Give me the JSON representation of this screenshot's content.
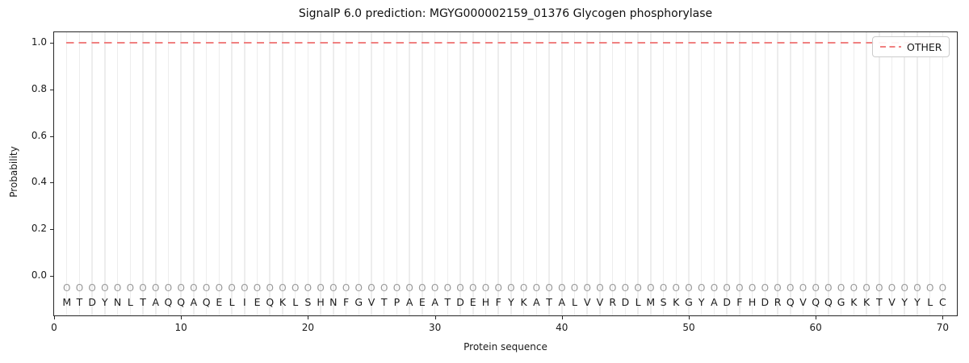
{
  "title": "SignalP 6.0 prediction: MGYG000002159_01376 Glycogen phosphorylase",
  "legend": {
    "label": "OTHER",
    "position": "upper right"
  },
  "axes": {
    "xlabel": "Protein sequence",
    "ylabel": "Probability",
    "xtick_labels": [
      "0",
      "10",
      "20",
      "30",
      "40",
      "50",
      "60",
      "70"
    ],
    "ytick_labels": [
      "0.0",
      "0.2",
      "0.4",
      "0.6",
      "0.8",
      "1.0"
    ]
  },
  "colors": {
    "other_line": "#f08080",
    "grid": "#ededed",
    "marker": "#9a9a9a",
    "residue_text": "#1a1a1a",
    "spine": "#262626",
    "legend_border": "#cccccc"
  },
  "chart_data": {
    "type": "line",
    "title": "SignalP 6.0 prediction: MGYG000002159_01376 Glycogen phosphorylase",
    "xlabel": "Protein sequence",
    "ylabel": "Probability",
    "xlim": [
      0,
      71
    ],
    "ylim": [
      -0.17,
      1.05
    ],
    "xticks": [
      0,
      10,
      20,
      30,
      40,
      50,
      60,
      70
    ],
    "yticks": [
      0.0,
      0.2,
      0.4,
      0.6,
      0.8,
      1.0
    ],
    "grid": "light vertical gridline at every residue position",
    "legend_position": "upper right",
    "series": [
      {
        "name": "OTHER",
        "color": "#f08080",
        "linestyle": "dashed",
        "x": [
          1,
          2,
          3,
          4,
          5,
          6,
          7,
          8,
          9,
          10,
          11,
          12,
          13,
          14,
          15,
          16,
          17,
          18,
          19,
          20,
          21,
          22,
          23,
          24,
          25,
          26,
          27,
          28,
          29,
          30,
          31,
          32,
          33,
          34,
          35,
          36,
          37,
          38,
          39,
          40,
          41,
          42,
          43,
          44,
          45,
          46,
          47,
          48,
          49,
          50,
          51,
          52,
          53,
          54,
          55,
          56,
          57,
          58,
          59,
          60,
          61,
          62,
          63,
          64,
          65,
          66,
          67,
          68,
          69,
          70
        ],
        "values": [
          1.0,
          1.0,
          1.0,
          1.0,
          1.0,
          1.0,
          1.0,
          1.0,
          1.0,
          1.0,
          1.0,
          1.0,
          1.0,
          1.0,
          1.0,
          1.0,
          1.0,
          1.0,
          1.0,
          1.0,
          1.0,
          1.0,
          1.0,
          1.0,
          1.0,
          1.0,
          1.0,
          1.0,
          1.0,
          1.0,
          1.0,
          1.0,
          1.0,
          1.0,
          1.0,
          1.0,
          1.0,
          1.0,
          1.0,
          1.0,
          1.0,
          1.0,
          1.0,
          1.0,
          1.0,
          1.0,
          1.0,
          1.0,
          1.0,
          1.0,
          1.0,
          1.0,
          1.0,
          1.0,
          1.0,
          1.0,
          1.0,
          1.0,
          1.0,
          1.0,
          1.0,
          1.0,
          1.0,
          1.0,
          1.0,
          1.0,
          1.0,
          1.0,
          1.0,
          1.0
        ]
      }
    ],
    "sequence": "MTDYNLTAQQAQELIEQKLSHNFGVTPAEATDEHFYKATALVVRDLMSKGYADFHDRQVQQGKKTVYYLC",
    "per_residue_marker": "O"
  }
}
